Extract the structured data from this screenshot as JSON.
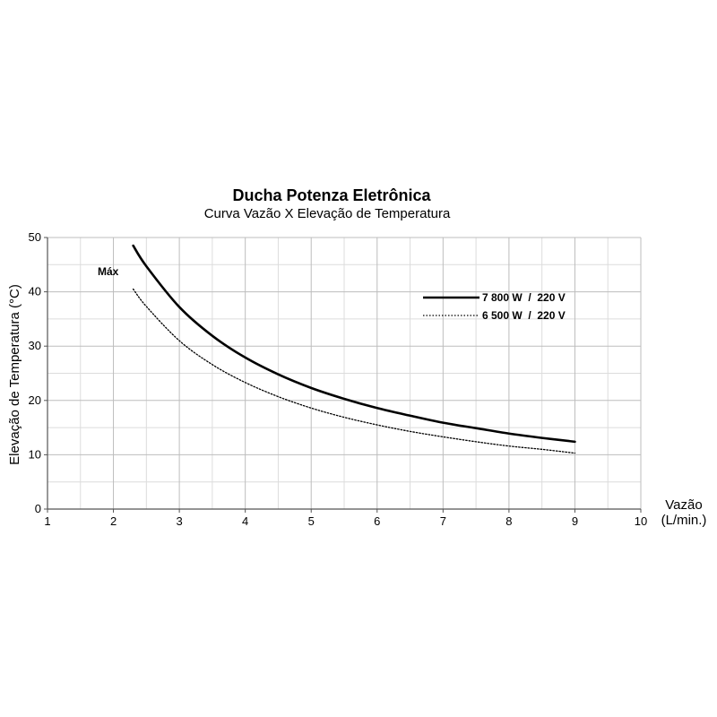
{
  "chart_data": {
    "type": "line",
    "title": "Ducha Potenza Eletrônica",
    "subtitle": "Curva Vazão X Elevação de Temperatura",
    "xlabel_line1": "Vazão",
    "xlabel_line2": "(L/min.)",
    "ylabel": "Elevação de Temperatura (°C)",
    "xlim": [
      1,
      10
    ],
    "ylim": [
      0,
      50
    ],
    "x_ticks": [
      1,
      2,
      3,
      4,
      5,
      6,
      7,
      8,
      9,
      10
    ],
    "y_ticks": [
      0,
      10,
      20,
      30,
      40,
      50
    ],
    "x_tick_labels": [
      "1",
      "2",
      "3",
      "4",
      "5",
      "6",
      "7",
      "8",
      "9",
      "10"
    ],
    "y_tick_labels": [
      "0",
      "10",
      "20",
      "30",
      "40",
      "50"
    ],
    "grid": true,
    "legend_position": "top-right",
    "annotation": "Máx",
    "series": [
      {
        "name": "7 800 W  /  220 V",
        "style": "solid",
        "color": "#000000",
        "x": [
          2.3,
          2.5,
          3.0,
          3.5,
          4.0,
          4.5,
          5.0,
          5.5,
          6.0,
          6.5,
          7.0,
          7.5,
          8.0,
          8.5,
          9.0
        ],
        "y": [
          48.5,
          44.7,
          37.2,
          31.9,
          27.9,
          24.8,
          22.3,
          20.3,
          18.6,
          17.2,
          15.9,
          14.9,
          13.9,
          13.1,
          12.4
        ]
      },
      {
        "name": "6 500 W  /  220 V",
        "style": "dotted",
        "color": "#000000",
        "x": [
          2.3,
          2.5,
          3.0,
          3.5,
          4.0,
          4.5,
          5.0,
          5.5,
          6.0,
          6.5,
          7.0,
          7.5,
          8.0,
          8.5,
          9.0
        ],
        "y": [
          40.5,
          37.3,
          31.0,
          26.6,
          23.3,
          20.7,
          18.6,
          16.9,
          15.5,
          14.3,
          13.3,
          12.4,
          11.6,
          11.0,
          10.3
        ]
      }
    ]
  }
}
